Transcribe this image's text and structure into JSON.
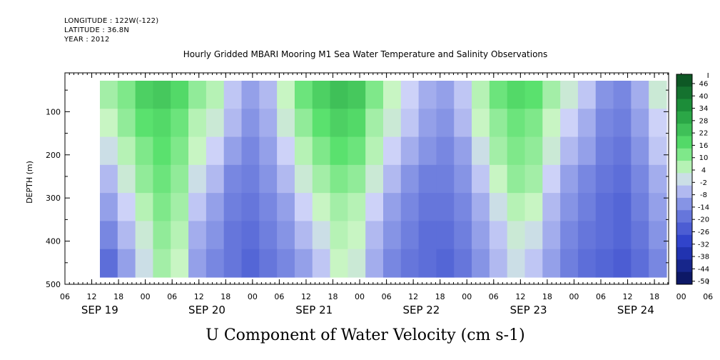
{
  "header": {
    "longitude": "LONGITUDE : 122W(-122)",
    "latitude": "LATITUDE : 36.8N",
    "year": "YEAR : 2012"
  },
  "chart_data": {
    "type": "heatmap",
    "title": "Hourly Gridded MBARI Mooring M1 Sea Water Temperature and Salinity Observations",
    "xlabel": "U Component of Water Velocity (cm s-1)",
    "ylabel": "DEPTH (m)",
    "x_hour_ticks": [
      "06",
      "12",
      "18",
      "00",
      "06",
      "12",
      "18",
      "00",
      "06",
      "12",
      "18",
      "00",
      "06",
      "12",
      "18",
      "00",
      "06",
      "12",
      "18",
      "00",
      "06",
      "12",
      "18",
      "00",
      "06",
      "12",
      "18"
    ],
    "x_day_labels": [
      "SEP 19",
      "SEP 20",
      "SEP 21",
      "SEP 22",
      "SEP 23",
      "SEP 24"
    ],
    "y_ticks": [
      "100",
      "200",
      "300",
      "400",
      "500"
    ],
    "y_range": [
      10,
      500
    ],
    "y_reversed": true,
    "colorbar_labels": [
      "46",
      "40",
      "34",
      "28",
      "22",
      "16",
      "10",
      "4",
      "-2",
      "-8",
      "-14",
      "-20",
      "-26",
      "-32",
      "-38",
      "-44",
      "-50"
    ],
    "colorbar_range": [
      -50,
      52
    ],
    "colors": {
      "high": "#0b4f1c",
      "mid_green": "#2ed65a",
      "light_green": "#c6f4c3",
      "light_blue": "#c9cdf6",
      "mid_blue": "#8c95e8",
      "low": "#0b1670"
    },
    "values_grid": [
      [
        8,
        12,
        20,
        22,
        18,
        10,
        6,
        -4,
        -10,
        -6,
        4,
        14,
        20,
        24,
        22,
        12,
        4,
        -2,
        -8,
        -10,
        -4,
        6,
        14,
        18,
        16,
        8,
        2,
        -4,
        -12,
        -14,
        -8,
        2
      ],
      [
        4,
        10,
        16,
        18,
        14,
        6,
        2,
        -6,
        -12,
        -8,
        2,
        10,
        16,
        20,
        18,
        8,
        2,
        -4,
        -10,
        -12,
        -6,
        4,
        10,
        14,
        12,
        4,
        -2,
        -8,
        -14,
        -16,
        -10,
        -2
      ],
      [
        0,
        6,
        12,
        16,
        12,
        4,
        -2,
        -10,
        -14,
        -10,
        -2,
        6,
        12,
        16,
        14,
        6,
        -2,
        -8,
        -12,
        -14,
        -10,
        0,
        8,
        12,
        10,
        2,
        -6,
        -10,
        -16,
        -18,
        -12,
        -4
      ],
      [
        -6,
        2,
        10,
        14,
        10,
        0,
        -6,
        -14,
        -16,
        -12,
        -6,
        2,
        8,
        12,
        10,
        2,
        -6,
        -12,
        -16,
        -16,
        -12,
        -4,
        4,
        10,
        8,
        -2,
        -10,
        -14,
        -18,
        -20,
        -14,
        -8
      ],
      [
        -10,
        -2,
        6,
        12,
        8,
        -4,
        -10,
        -16,
        -18,
        -14,
        -10,
        -2,
        4,
        8,
        6,
        -2,
        -10,
        -14,
        -18,
        -18,
        -14,
        -8,
        0,
        6,
        4,
        -6,
        -12,
        -16,
        -20,
        -22,
        -16,
        -10
      ],
      [
        -14,
        -6,
        2,
        10,
        6,
        -8,
        -12,
        -18,
        -20,
        -16,
        -12,
        -6,
        0,
        6,
        4,
        -6,
        -12,
        -16,
        -20,
        -20,
        -16,
        -10,
        -4,
        2,
        0,
        -8,
        -14,
        -18,
        -20,
        -22,
        -18,
        -12
      ],
      [
        -20,
        -10,
        0,
        8,
        4,
        -10,
        -14,
        -18,
        -22,
        -18,
        -14,
        -10,
        -4,
        4,
        2,
        -8,
        -14,
        -18,
        -20,
        -22,
        -18,
        -12,
        -6,
        0,
        -4,
        -10,
        -16,
        -20,
        -22,
        -24,
        -20,
        -14
      ]
    ],
    "no_data_rows": 1
  }
}
